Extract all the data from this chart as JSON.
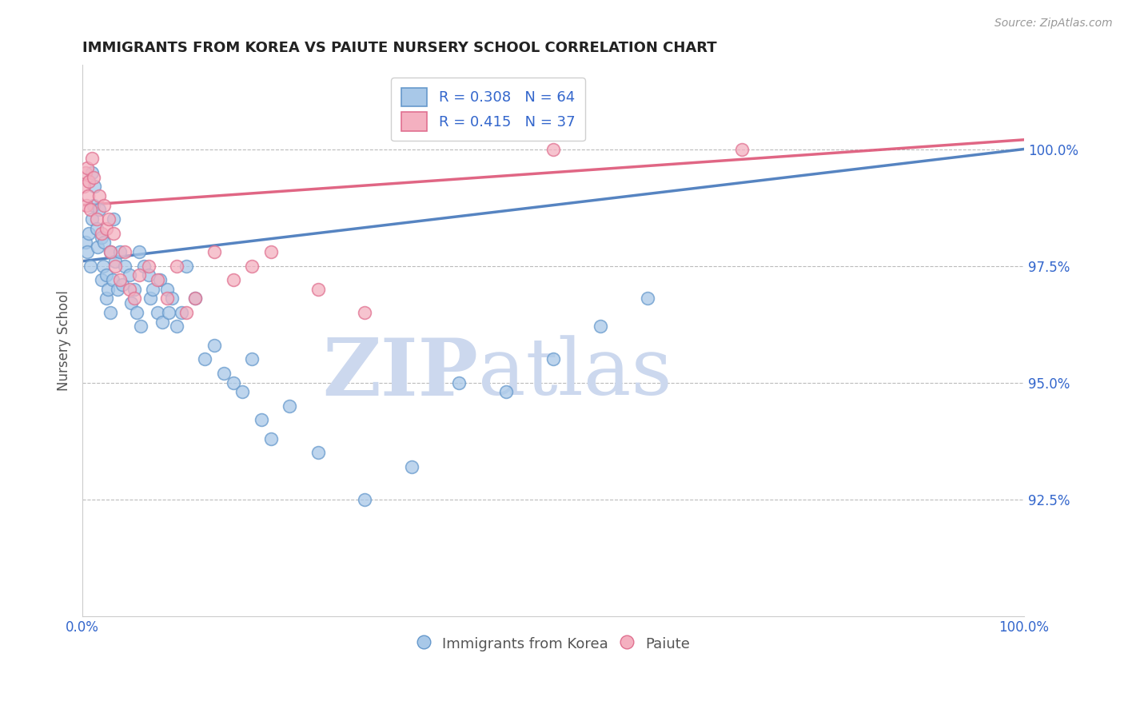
{
  "title": "IMMIGRANTS FROM KOREA VS PAIUTE NURSERY SCHOOL CORRELATION CHART",
  "source_text": "Source: ZipAtlas.com",
  "ylabel": "Nursery School",
  "xlim": [
    0.0,
    100.0
  ],
  "ylim": [
    90.0,
    101.8
  ],
  "yticks": [
    92.5,
    95.0,
    97.5,
    100.0
  ],
  "ytick_labels": [
    "92.5%",
    "95.0%",
    "97.5%",
    "100.0%"
  ],
  "xticks": [
    0.0,
    100.0
  ],
  "xtick_labels": [
    "0.0%",
    "100.0%"
  ],
  "blue_R": 0.308,
  "blue_N": 64,
  "pink_R": 0.415,
  "pink_N": 37,
  "blue_color": "#a8c8e8",
  "pink_color": "#f4b0c0",
  "blue_edge_color": "#6699cc",
  "pink_edge_color": "#e07090",
  "blue_line_color": "#4477bb",
  "pink_line_color": "#dd5577",
  "legend_blue_label": "Immigrants from Korea",
  "legend_pink_label": "Paiute",
  "blue_x": [
    0.3,
    0.5,
    0.7,
    0.8,
    1.0,
    1.0,
    1.2,
    1.3,
    1.5,
    1.6,
    1.8,
    2.0,
    2.0,
    2.2,
    2.3,
    2.5,
    2.5,
    2.7,
    3.0,
    3.0,
    3.2,
    3.3,
    3.5,
    3.7,
    4.0,
    4.2,
    4.5,
    5.0,
    5.2,
    5.5,
    5.8,
    6.0,
    6.2,
    6.5,
    7.0,
    7.2,
    7.5,
    8.0,
    8.2,
    8.5,
    9.0,
    9.2,
    9.5,
    10.0,
    10.5,
    11.0,
    12.0,
    13.0,
    14.0,
    15.0,
    16.0,
    17.0,
    18.0,
    19.0,
    20.0,
    22.0,
    25.0,
    30.0,
    35.0,
    40.0,
    45.0,
    50.0,
    55.0,
    60.0
  ],
  "blue_y": [
    98.0,
    97.8,
    98.2,
    97.5,
    98.5,
    99.5,
    98.8,
    99.2,
    98.3,
    97.9,
    98.7,
    98.1,
    97.2,
    97.5,
    98.0,
    97.3,
    96.8,
    97.0,
    97.8,
    96.5,
    97.2,
    98.5,
    97.6,
    97.0,
    97.8,
    97.1,
    97.5,
    97.3,
    96.7,
    97.0,
    96.5,
    97.8,
    96.2,
    97.5,
    97.3,
    96.8,
    97.0,
    96.5,
    97.2,
    96.3,
    97.0,
    96.5,
    96.8,
    96.2,
    96.5,
    97.5,
    96.8,
    95.5,
    95.8,
    95.2,
    95.0,
    94.8,
    95.5,
    94.2,
    93.8,
    94.5,
    93.5,
    92.5,
    93.2,
    95.0,
    94.8,
    95.5,
    96.2,
    96.8
  ],
  "pink_x": [
    0.2,
    0.3,
    0.4,
    0.5,
    0.6,
    0.7,
    0.8,
    1.0,
    1.2,
    1.5,
    1.8,
    2.0,
    2.3,
    2.5,
    2.8,
    3.0,
    3.3,
    3.5,
    4.0,
    4.5,
    5.0,
    5.5,
    6.0,
    7.0,
    8.0,
    9.0,
    10.0,
    11.0,
    12.0,
    14.0,
    16.0,
    18.0,
    20.0,
    25.0,
    30.0,
    50.0,
    70.0
  ],
  "pink_y": [
    99.2,
    99.5,
    98.8,
    99.6,
    99.0,
    99.3,
    98.7,
    99.8,
    99.4,
    98.5,
    99.0,
    98.2,
    98.8,
    98.3,
    98.5,
    97.8,
    98.2,
    97.5,
    97.2,
    97.8,
    97.0,
    96.8,
    97.3,
    97.5,
    97.2,
    96.8,
    97.5,
    96.5,
    96.8,
    97.8,
    97.2,
    97.5,
    97.8,
    97.0,
    96.5,
    100.0,
    100.0
  ],
  "blue_line_start_x": 0.0,
  "blue_line_start_y": 97.6,
  "blue_line_end_x": 100.0,
  "blue_line_end_y": 100.0,
  "pink_line_start_x": 0.0,
  "pink_line_start_y": 98.8,
  "pink_line_end_x": 100.0,
  "pink_line_end_y": 100.2,
  "background_color": "#ffffff",
  "grid_color": "#bbbbbb",
  "title_color": "#222222",
  "axis_label_color": "#555555",
  "tick_label_color": "#3366cc",
  "watermark_zip": "ZIP",
  "watermark_atlas": "atlas",
  "watermark_color": "#ccd8ee"
}
